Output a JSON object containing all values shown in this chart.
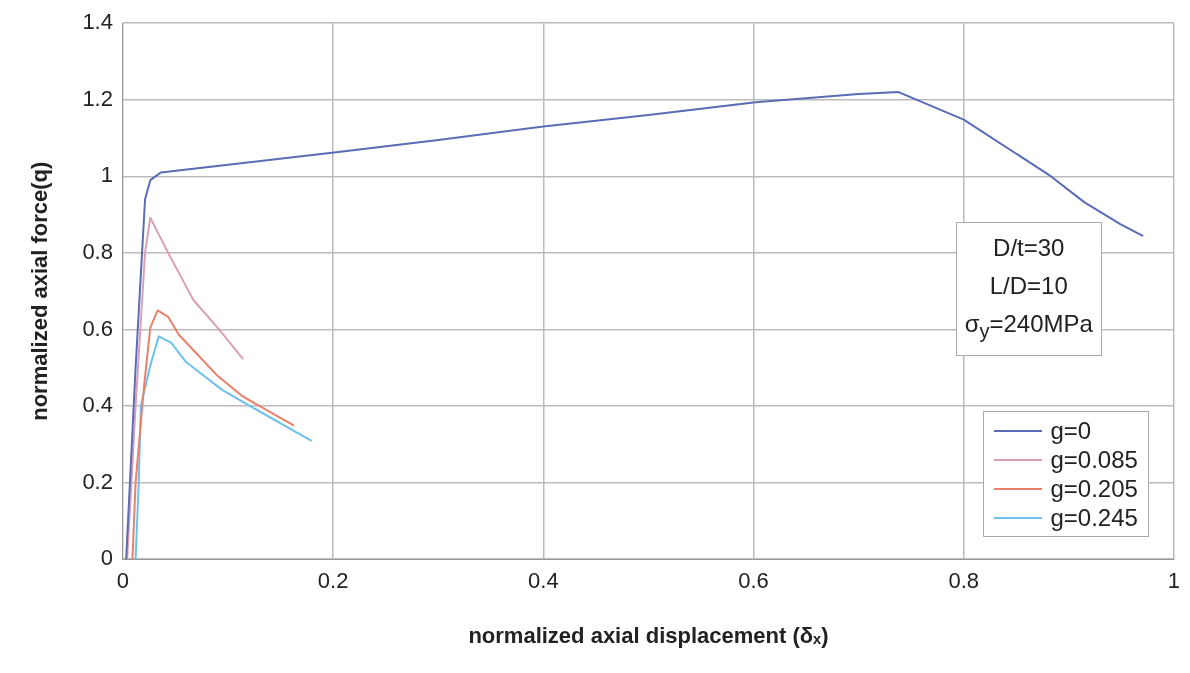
{
  "chart_data": {
    "type": "line",
    "xlabel": "normalized axial displacement (δₓ)",
    "ylabel": "normalized axial force(q)",
    "xlim": [
      0,
      1
    ],
    "xticks": [
      0,
      0.2,
      0.4,
      0.6,
      0.8,
      1
    ],
    "ylim": [
      0,
      1.4
    ],
    "yticks": [
      0,
      0.2,
      0.4,
      0.6,
      0.8,
      1,
      1.2,
      1.4
    ],
    "grid": true,
    "legend": "bottom right",
    "marker": "none",
    "line_style": "solid",
    "annotations": [
      "D/t=30",
      "L/D=10",
      "σ$_{y}$=240MPa"
    ],
    "series": [
      {
        "name": "g=0",
        "color": "#5b6bb5",
        "x": [
          0.003,
          0.012,
          0.021,
          0.026,
          0.036,
          0.1,
          0.203,
          0.3,
          0.4,
          0.5,
          0.6,
          0.7,
          0.738,
          0.8,
          0.881,
          0.915,
          0.949,
          0.97
        ],
        "values": [
          0,
          0.5,
          0.94,
          0.99,
          1.01,
          1.03,
          1.063,
          1.095,
          1.13,
          1.16,
          1.193,
          1.215,
          1.22,
          1.148,
          1.004,
          0.932,
          0.875,
          0.845
        ]
      },
      {
        "name": "g=0.085",
        "color": "#d9a0b8",
        "x": [
          0.004,
          0.012,
          0.021,
          0.026,
          0.043,
          0.067,
          0.09,
          0.114
        ],
        "values": [
          0,
          0.4,
          0.8,
          0.892,
          0.8,
          0.677,
          0.605,
          0.524
        ]
      },
      {
        "name": "g=0.205",
        "color": "#e8806a",
        "x": [
          0.009,
          0.012,
          0.02,
          0.026,
          0.033,
          0.043,
          0.053,
          0.09,
          0.114,
          0.162
        ],
        "values": [
          0,
          0.2,
          0.45,
          0.605,
          0.65,
          0.633,
          0.587,
          0.479,
          0.425,
          0.35
        ]
      },
      {
        "name": "g=0.245",
        "color": "#6ec0ee",
        "x": [
          0.012,
          0.015,
          0.017,
          0.026,
          0.034,
          0.046,
          0.06,
          0.094,
          0.121,
          0.179
        ],
        "values": [
          0,
          0.2,
          0.4,
          0.506,
          0.582,
          0.565,
          0.515,
          0.443,
          0.4,
          0.31
        ]
      }
    ]
  }
}
